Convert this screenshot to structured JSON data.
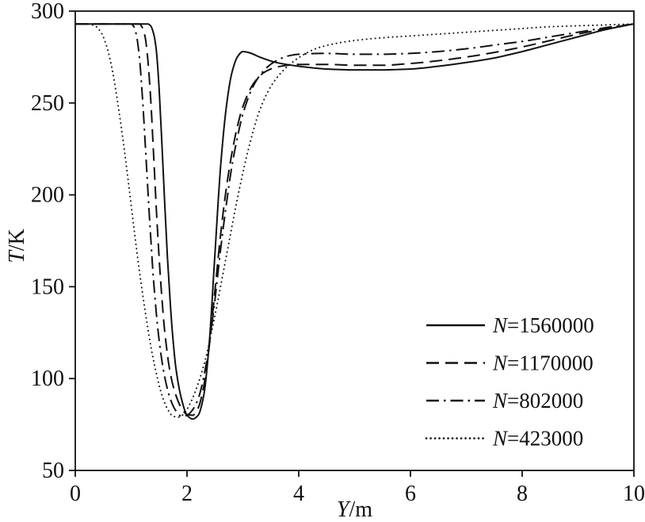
{
  "figure": {
    "background": "#ffffff",
    "line_color": "#111111"
  },
  "chart_data": {
    "type": "line",
    "title": "",
    "xlabel_italic": "Y",
    "xlabel_rest": "/m",
    "ylabel_italic": "T",
    "ylabel_rest": "/K",
    "xlim": [
      0,
      10
    ],
    "ylim": [
      50,
      300
    ],
    "xticks": [
      0,
      2,
      4,
      6,
      8,
      10
    ],
    "yticks": [
      50,
      100,
      150,
      200,
      250,
      300
    ],
    "grid": false,
    "legend_position": "lower right",
    "series": [
      {
        "label": "N=1560000",
        "label_italic": "N",
        "label_rest": "=1560000",
        "style": "solid",
        "points": [
          [
            0,
            293
          ],
          [
            0.6,
            293
          ],
          [
            1.0,
            293
          ],
          [
            1.2,
            293
          ],
          [
            1.3,
            293
          ],
          [
            1.35,
            292
          ],
          [
            1.4,
            288
          ],
          [
            1.45,
            279
          ],
          [
            1.5,
            258
          ],
          [
            1.55,
            228
          ],
          [
            1.6,
            196
          ],
          [
            1.65,
            166
          ],
          [
            1.7,
            141
          ],
          [
            1.75,
            121
          ],
          [
            1.8,
            106
          ],
          [
            1.9,
            89
          ],
          [
            2.0,
            80
          ],
          [
            2.1,
            78
          ],
          [
            2.2,
            80
          ],
          [
            2.3,
            91
          ],
          [
            2.4,
            120
          ],
          [
            2.5,
            168
          ],
          [
            2.6,
            215
          ],
          [
            2.7,
            247
          ],
          [
            2.8,
            266
          ],
          [
            2.9,
            275
          ],
          [
            3.0,
            278
          ],
          [
            3.1,
            277.5
          ],
          [
            3.3,
            275
          ],
          [
            3.6,
            272
          ],
          [
            4.0,
            270
          ],
          [
            4.5,
            268.5
          ],
          [
            5.0,
            268
          ],
          [
            5.5,
            268
          ],
          [
            6.0,
            268.5
          ],
          [
            6.5,
            270
          ],
          [
            7.0,
            272
          ],
          [
            7.5,
            274.5
          ],
          [
            8.0,
            278
          ],
          [
            8.5,
            282
          ],
          [
            9.0,
            286
          ],
          [
            9.5,
            290
          ],
          [
            10,
            293
          ]
        ]
      },
      {
        "label": "N=1170000",
        "label_italic": "N",
        "label_rest": "=1170000",
        "style": "dashed",
        "points": [
          [
            0,
            293
          ],
          [
            0.6,
            293
          ],
          [
            1.0,
            293
          ],
          [
            1.15,
            293
          ],
          [
            1.2,
            291
          ],
          [
            1.25,
            286
          ],
          [
            1.3,
            273
          ],
          [
            1.35,
            252
          ],
          [
            1.4,
            223
          ],
          [
            1.45,
            193
          ],
          [
            1.5,
            166
          ],
          [
            1.55,
            144
          ],
          [
            1.6,
            126
          ],
          [
            1.7,
            103
          ],
          [
            1.8,
            91
          ],
          [
            1.9,
            84
          ],
          [
            2.0,
            80.5
          ],
          [
            2.1,
            80
          ],
          [
            2.2,
            84
          ],
          [
            2.3,
            96
          ],
          [
            2.4,
            118
          ],
          [
            2.5,
            148
          ],
          [
            2.6,
            178
          ],
          [
            2.7,
            203
          ],
          [
            2.8,
            222
          ],
          [
            2.9,
            237
          ],
          [
            3.0,
            248
          ],
          [
            3.2,
            261
          ],
          [
            3.4,
            267
          ],
          [
            3.6,
            269.5
          ],
          [
            3.8,
            270.5
          ],
          [
            4.0,
            271
          ],
          [
            4.5,
            271
          ],
          [
            5.0,
            270.5
          ],
          [
            5.5,
            270.5
          ],
          [
            6.0,
            271.5
          ],
          [
            6.5,
            273
          ],
          [
            7.0,
            275
          ],
          [
            7.5,
            277.5
          ],
          [
            8.0,
            280.5
          ],
          [
            8.5,
            284
          ],
          [
            9.0,
            287.5
          ],
          [
            9.5,
            290.5
          ],
          [
            10,
            293
          ]
        ]
      },
      {
        "label": "N=802000",
        "label_italic": "N",
        "label_rest": "=802000",
        "style": "dash-dot",
        "points": [
          [
            0,
            293
          ],
          [
            0.5,
            293
          ],
          [
            0.9,
            293
          ],
          [
            1.0,
            293
          ],
          [
            1.05,
            291.5
          ],
          [
            1.1,
            286
          ],
          [
            1.15,
            274
          ],
          [
            1.2,
            254
          ],
          [
            1.25,
            229
          ],
          [
            1.3,
            202
          ],
          [
            1.35,
            177
          ],
          [
            1.4,
            154
          ],
          [
            1.5,
            121
          ],
          [
            1.6,
            101
          ],
          [
            1.7,
            89
          ],
          [
            1.8,
            82.5
          ],
          [
            1.9,
            79.5
          ],
          [
            2.0,
            80
          ],
          [
            2.1,
            83
          ],
          [
            2.2,
            89
          ],
          [
            2.3,
            101
          ],
          [
            2.4,
            119
          ],
          [
            2.5,
            143
          ],
          [
            2.6,
            170
          ],
          [
            2.7,
            194
          ],
          [
            2.8,
            215
          ],
          [
            2.9,
            231
          ],
          [
            3.0,
            244
          ],
          [
            3.2,
            260
          ],
          [
            3.4,
            268.5
          ],
          [
            3.6,
            273
          ],
          [
            3.8,
            275.5
          ],
          [
            4.0,
            276.5
          ],
          [
            4.5,
            277
          ],
          [
            5.0,
            276.5
          ],
          [
            5.5,
            276.5
          ],
          [
            6.0,
            277
          ],
          [
            6.5,
            278
          ],
          [
            7.0,
            279.5
          ],
          [
            7.5,
            281.5
          ],
          [
            8.0,
            283.5
          ],
          [
            8.5,
            286
          ],
          [
            9.0,
            288.5
          ],
          [
            9.5,
            291
          ],
          [
            10,
            293
          ]
        ]
      },
      {
        "label": "N=423000",
        "label_italic": "N",
        "label_rest": "=423000",
        "style": "dotted",
        "points": [
          [
            0,
            293
          ],
          [
            0.2,
            293
          ],
          [
            0.35,
            292
          ],
          [
            0.45,
            289
          ],
          [
            0.55,
            282
          ],
          [
            0.65,
            270
          ],
          [
            0.75,
            252
          ],
          [
            0.85,
            231
          ],
          [
            0.95,
            207
          ],
          [
            1.05,
            182
          ],
          [
            1.15,
            158
          ],
          [
            1.25,
            137
          ],
          [
            1.35,
            118
          ],
          [
            1.45,
            103
          ],
          [
            1.55,
            91
          ],
          [
            1.65,
            83.5
          ],
          [
            1.75,
            79.5
          ],
          [
            1.85,
            79
          ],
          [
            1.95,
            81
          ],
          [
            2.05,
            86
          ],
          [
            2.15,
            93
          ],
          [
            2.25,
            102
          ],
          [
            2.35,
            113
          ],
          [
            2.45,
            127
          ],
          [
            2.55,
            142
          ],
          [
            2.65,
            158
          ],
          [
            2.75,
            174
          ],
          [
            2.85,
            190
          ],
          [
            2.95,
            205
          ],
          [
            3.1,
            225
          ],
          [
            3.3,
            246
          ],
          [
            3.5,
            259
          ],
          [
            3.7,
            267
          ],
          [
            3.9,
            272.5
          ],
          [
            4.1,
            276.5
          ],
          [
            4.3,
            279.5
          ],
          [
            4.6,
            282
          ],
          [
            5.0,
            284
          ],
          [
            5.5,
            285.5
          ],
          [
            6.0,
            286.5
          ],
          [
            6.5,
            287.5
          ],
          [
            7.0,
            288.5
          ],
          [
            7.5,
            289.5
          ],
          [
            8.0,
            290.5
          ],
          [
            8.5,
            291.5
          ],
          [
            9.0,
            292
          ],
          [
            9.5,
            292.5
          ],
          [
            10,
            293
          ]
        ]
      }
    ]
  }
}
